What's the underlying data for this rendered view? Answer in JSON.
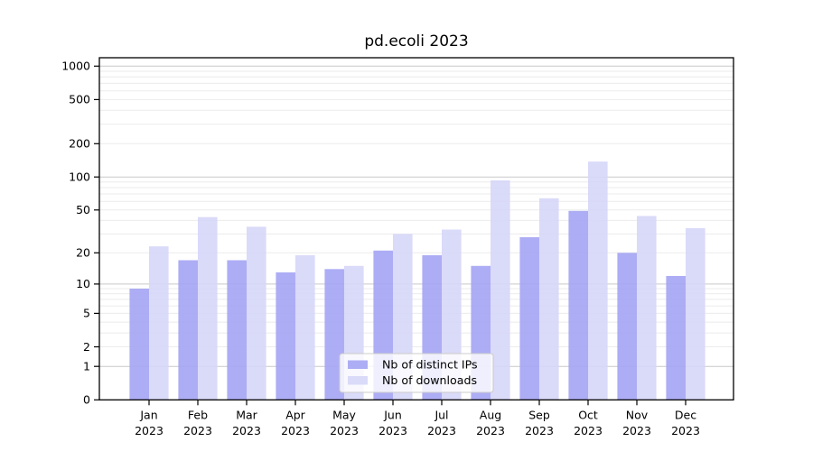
{
  "chart_data": {
    "type": "bar",
    "title": "pd.ecoli 2023",
    "categories": [
      "Jan 2023",
      "Feb 2023",
      "Mar 2023",
      "Apr 2023",
      "May 2023",
      "Jun 2023",
      "Jul 2023",
      "Aug 2023",
      "Sep 2023",
      "Oct 2023",
      "Nov 2023",
      "Dec 2023"
    ],
    "series": [
      {
        "name": "Nb of distinct IPs",
        "color": "#a4a4f4",
        "values": [
          9,
          17,
          17,
          13,
          14,
          21,
          19,
          15,
          28,
          49,
          20,
          12
        ]
      },
      {
        "name": "Nb of downloads",
        "color": "#d6d6f8",
        "values": [
          23,
          43,
          35,
          19,
          15,
          30,
          33,
          93,
          64,
          138,
          44,
          34
        ]
      }
    ],
    "xlabel": "",
    "ylabel": "",
    "yscale": "log1p",
    "yticks": [
      0,
      1,
      2,
      5,
      10,
      20,
      50,
      100,
      200,
      500,
      1000
    ],
    "ylim": [
      0,
      1190
    ],
    "grid": true,
    "legend_position": "lower center",
    "colors": {
      "major_gridline": "#c9c9c9",
      "minor_gridline": "#ebebeb",
      "axis": "#000000",
      "legend_border": "#cccccc",
      "legend_background": "rgba(255,255,255,0.8)"
    }
  }
}
